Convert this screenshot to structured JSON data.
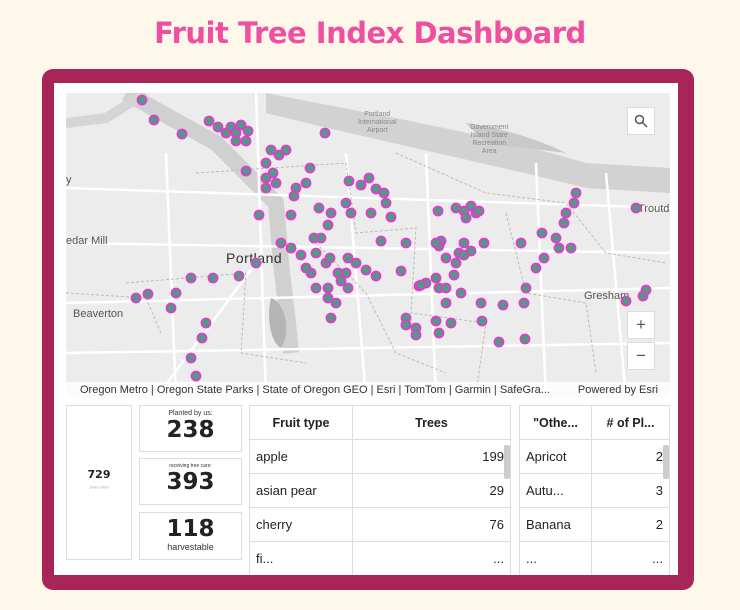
{
  "header": {
    "title": "Fruit Tree Index Dashboard"
  },
  "map": {
    "labels": {
      "portland": "Portland",
      "beaverton": "Beaverton",
      "gresham": "Gresham",
      "cedar_mill": "edar Mill",
      "troutdale": "Troutd",
      "airport": "Portland\nInternational\nAirport",
      "government_island": "Government\nIsland State\nRecreation\nArea",
      "edge_left": "y"
    },
    "attribution": "Oregon Metro | Oregon State Parks | State of Oregon GEO | Esri | TomTom | Garmin | SafeGra...",
    "powered_by": "Powered by Esri",
    "zoom_in": "+",
    "zoom_out": "−",
    "search_icon": "search-icon",
    "point_color": "#4a9f7f",
    "point_stroke": "#e23bd0"
  },
  "stats": {
    "total_value": "729",
    "total_caption": "???? ????",
    "planted_caption": "Planted by us:",
    "planted_value": "238",
    "care_caption": "receiving tree care:",
    "care_value": "393",
    "harvest_value": "118",
    "harvest_caption": "harvestable"
  },
  "fruit_table": {
    "headers": [
      "Fruit type",
      "Trees"
    ],
    "rows": [
      {
        "type": "apple",
        "trees": "199"
      },
      {
        "type": "asian pear",
        "trees": "29"
      },
      {
        "type": "cherry",
        "trees": "76"
      },
      {
        "type": "fi...",
        "trees": "..."
      }
    ]
  },
  "other_table": {
    "headers": [
      "\"Othe...",
      "# of Pl..."
    ],
    "rows": [
      {
        "type": "Apricot",
        "count": "2"
      },
      {
        "type": "Autu...",
        "count": "3"
      },
      {
        "type": "Banana",
        "count": "2"
      },
      {
        "type": "...",
        "count": "..."
      }
    ]
  }
}
